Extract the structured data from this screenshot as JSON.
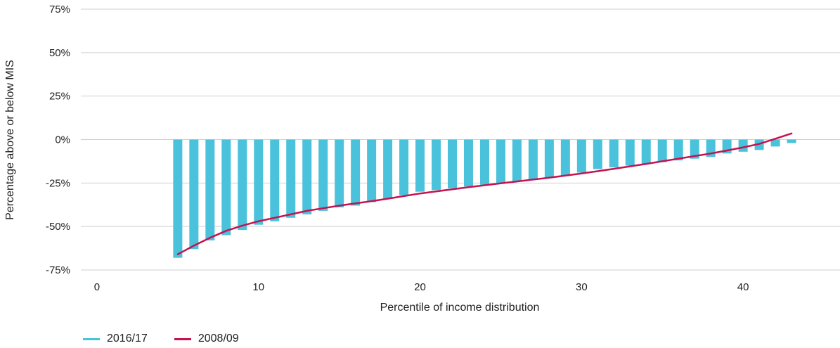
{
  "chart_data": {
    "type": "bar",
    "ylabel": "Percentage above or below MIS",
    "xlabel": "Percentile of income distribution",
    "xlim": [
      -1,
      46
    ],
    "ylim": [
      -75,
      75
    ],
    "x_ticks": [
      0,
      10,
      20,
      30,
      40
    ],
    "y_ticks": [
      75,
      50,
      25,
      0,
      -25,
      -50,
      -75
    ],
    "y_tick_labels": [
      "75%",
      "50%",
      "25%",
      "0%",
      "-25%",
      "-50%",
      "-75%"
    ],
    "grid": "horizontal",
    "legend_position": "bottom-left",
    "series": [
      {
        "name": "2016/17",
        "kind": "bar",
        "color": "#4bc2db",
        "x": [
          5,
          6,
          7,
          8,
          9,
          10,
          11,
          12,
          13,
          14,
          15,
          16,
          17,
          18,
          19,
          20,
          21,
          22,
          23,
          24,
          25,
          26,
          27,
          28,
          29,
          30,
          31,
          32,
          33,
          34,
          35,
          36,
          37,
          38,
          39,
          40,
          41,
          42,
          43
        ],
        "values": [
          -68,
          -63,
          -58,
          -55,
          -52,
          -49,
          -47,
          -45,
          -43,
          -41,
          -39,
          -38,
          -36,
          -34,
          -32,
          -30,
          -29,
          -28,
          -27,
          -26,
          -25,
          -24,
          -23,
          -22,
          -21,
          -19,
          -17,
          -16,
          -15,
          -14,
          -13,
          -12,
          -11,
          -10,
          -8,
          -7,
          -6,
          -4,
          -2
        ]
      },
      {
        "name": "2008/09",
        "kind": "line",
        "color": "#c4134f",
        "x": [
          5,
          6,
          7,
          8,
          9,
          10,
          11,
          12,
          13,
          14,
          15,
          16,
          17,
          18,
          19,
          20,
          21,
          22,
          23,
          24,
          25,
          26,
          27,
          28,
          29,
          30,
          31,
          32,
          33,
          34,
          35,
          36,
          37,
          38,
          39,
          40,
          41,
          42,
          43
        ],
        "values": [
          -66,
          -61,
          -56.5,
          -52.5,
          -49.5,
          -47,
          -45,
          -43,
          -41,
          -39.5,
          -38,
          -36.7,
          -35.4,
          -34,
          -32.5,
          -31,
          -29.8,
          -28.6,
          -27.4,
          -26.3,
          -25.2,
          -24.1,
          -23,
          -21.9,
          -20.7,
          -19.5,
          -18.2,
          -16.8,
          -15.4,
          -14,
          -12.5,
          -11,
          -9.5,
          -8,
          -6.3,
          -4.5,
          -2.5,
          0.5,
          3.5
        ]
      }
    ]
  }
}
